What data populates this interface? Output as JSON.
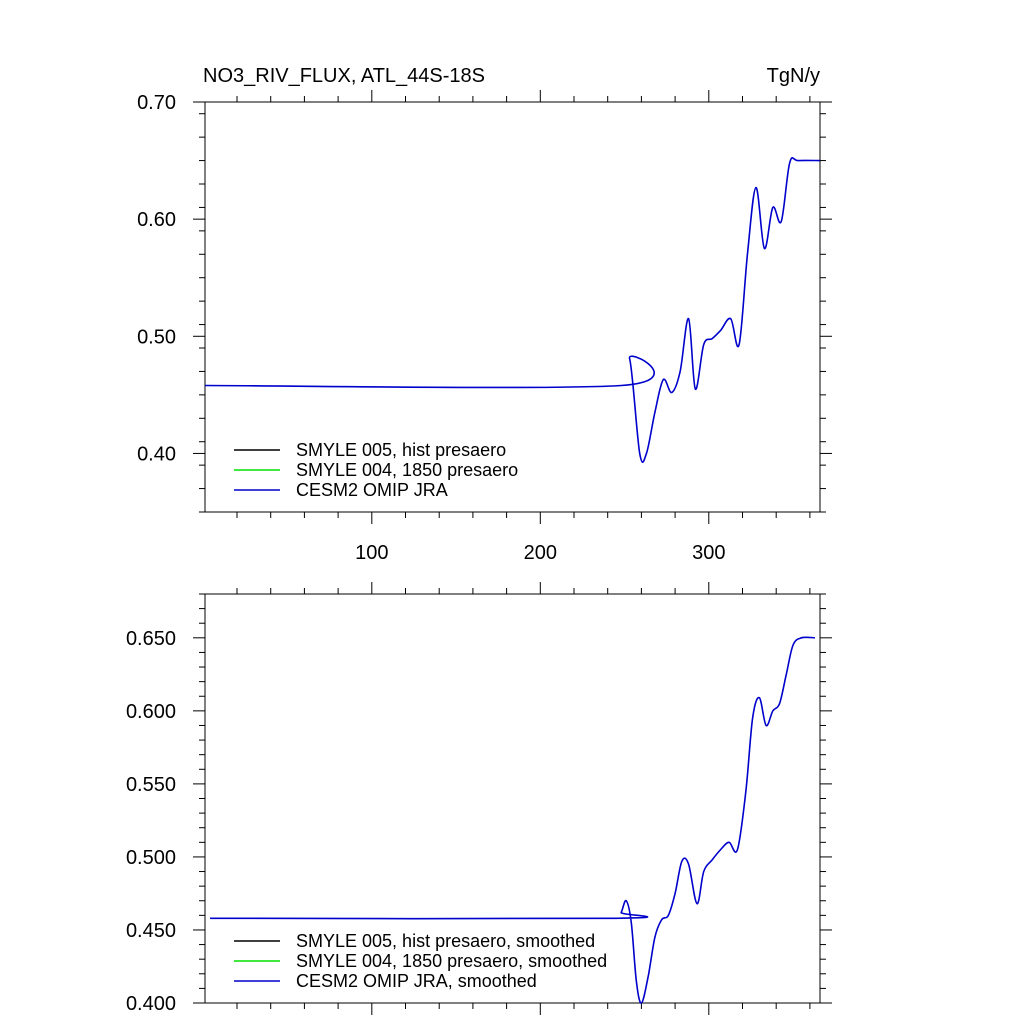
{
  "chart_data": [
    {
      "type": "line",
      "title": "NO3_RIV_FLUX, ATL_44S-18S",
      "units": "TgN/y",
      "xlim": [
        1,
        366
      ],
      "ylim": [
        0.35,
        0.7
      ],
      "xticks": [
        100,
        200,
        300
      ],
      "xtick_labels": [
        "100",
        "200",
        "300"
      ],
      "yticks": [
        0.4,
        0.5,
        0.6,
        0.7
      ],
      "ytick_labels": [
        "0.40",
        "0.50",
        "0.60",
        "0.70"
      ],
      "grid": false,
      "legend_position": "bottom-left",
      "legend": [
        {
          "label": "SMYLE 005, hist presaero",
          "color": "#000000"
        },
        {
          "label": "SMYLE 004, 1850 presaero",
          "color": "#00e000"
        },
        {
          "label": "CESM2 OMIP JRA",
          "color": "#0000cc"
        }
      ],
      "series": [
        {
          "color": "#0000cc",
          "x": [
            1,
            248,
            253,
            259,
            263,
            268,
            273,
            278,
            283,
            288,
            292,
            297,
            302,
            307,
            313,
            318,
            323,
            328,
            333,
            338,
            343,
            348,
            353,
            366
          ],
          "y": [
            0.458,
            0.458,
            0.481,
            0.4,
            0.4,
            0.435,
            0.463,
            0.452,
            0.47,
            0.515,
            0.455,
            0.493,
            0.498,
            0.505,
            0.515,
            0.493,
            0.571,
            0.627,
            0.575,
            0.61,
            0.598,
            0.648,
            0.65,
            0.65
          ]
        }
      ]
    },
    {
      "type": "line",
      "xlim": [
        1,
        366
      ],
      "ylim": [
        0.4,
        0.68
      ],
      "xticks": [
        100,
        200,
        300
      ],
      "yticks": [
        0.4,
        0.45,
        0.5,
        0.55,
        0.6,
        0.65
      ],
      "ytick_labels": [
        "0.400",
        "0.450",
        "0.500",
        "0.550",
        "0.600",
        "0.650"
      ],
      "grid": false,
      "legend_position": "bottom-left",
      "legend": [
        {
          "label": "SMYLE 005, hist presaero, smoothed",
          "color": "#000000"
        },
        {
          "label": "SMYLE 004, 1850 presaero, smoothed",
          "color": "#00e000"
        },
        {
          "label": "CESM2 OMIP JRA, smoothed",
          "color": "#0000cc"
        }
      ],
      "series": [
        {
          "color": "#0000cc",
          "x": [
            4,
            245,
            248,
            251,
            254,
            257,
            260,
            264,
            268,
            272,
            276,
            280,
            284,
            288,
            293,
            297,
            302,
            307,
            312,
            317,
            322,
            326,
            330,
            334,
            338,
            342,
            346,
            350,
            355,
            363
          ],
          "y": [
            0.458,
            0.458,
            0.462,
            0.47,
            0.455,
            0.415,
            0.4,
            0.418,
            0.445,
            0.457,
            0.46,
            0.475,
            0.497,
            0.495,
            0.468,
            0.49,
            0.498,
            0.505,
            0.51,
            0.505,
            0.545,
            0.595,
            0.609,
            0.59,
            0.6,
            0.605,
            0.625,
            0.645,
            0.65,
            0.65
          ]
        }
      ]
    }
  ]
}
